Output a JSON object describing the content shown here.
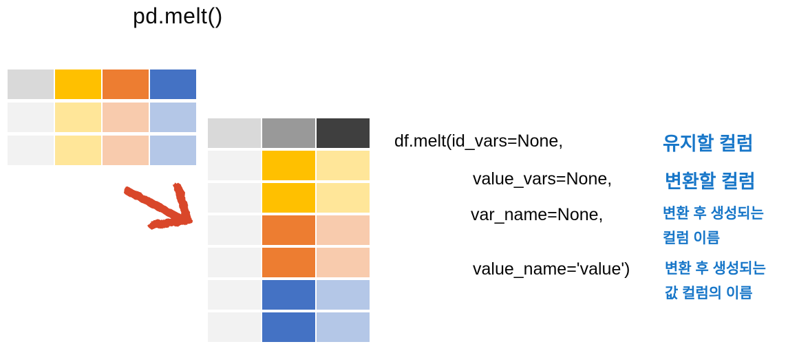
{
  "title": "pd.melt()",
  "colors": {
    "annotation_blue": "#1776C8",
    "arrow_red": "#D9472B",
    "header_gray": "#D9D9D9",
    "row_gray": "#F2F2F2",
    "gold": "#FFC000",
    "gold_light": "#FFE699",
    "orange": "#ED7D31",
    "orange_light": "#F8CBAD",
    "blue": "#4472C4",
    "blue_light": "#B4C7E7",
    "mid_gray": "#999999",
    "dark_gray": "#3F3F3F"
  },
  "wide_table": {
    "description": "wide-format dataframe, 3 rows x 4 columns",
    "rows": [
      [
        "#D9D9D9",
        "#FFC000",
        "#ED7D31",
        "#4472C4"
      ],
      [
        "#F2F2F2",
        "#FFE699",
        "#F8CBAD",
        "#B4C7E7"
      ],
      [
        "#F2F2F2",
        "#FFE699",
        "#F8CBAD",
        "#B4C7E7"
      ]
    ]
  },
  "long_table": {
    "description": "long-format (melted) dataframe, 7 rows x 3 columns",
    "rows": [
      [
        "#D9D9D9",
        "#999999",
        "#3F3F3F"
      ],
      [
        "#F2F2F2",
        "#FFC000",
        "#FFE699"
      ],
      [
        "#F2F2F2",
        "#FFC000",
        "#FFE699"
      ],
      [
        "#F2F2F2",
        "#ED7D31",
        "#F8CBAD"
      ],
      [
        "#F2F2F2",
        "#ED7D31",
        "#F8CBAD"
      ],
      [
        "#F2F2F2",
        "#4472C4",
        "#B4C7E7"
      ],
      [
        "#F2F2F2",
        "#4472C4",
        "#B4C7E7"
      ]
    ]
  },
  "code": {
    "line1": "df.melt(id_vars=None,",
    "line2": "value_vars=None,",
    "line3": "var_name=None,",
    "line4": "value_name='value')"
  },
  "annotations": {
    "id_vars": "유지할 컬럼",
    "value_vars": "변환할 컬럼",
    "var_name": "변환 후 생성되는\n컬럼 이름",
    "value_name": "변환 후 생성되는\n값 컬럼의 이름"
  },
  "arrow_icon": "hand-drawn-red-arrow-down-right"
}
